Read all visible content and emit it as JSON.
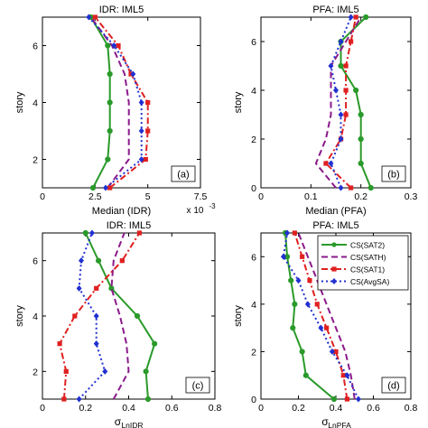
{
  "chart_data": [
    {
      "type": "line",
      "title": "IDR: IML5",
      "xlabel": "Median (IDR)",
      "ylabel": "story",
      "xlim": [
        0,
        7.5
      ],
      "ylim": [
        1,
        7
      ],
      "xticks": [
        "0",
        "2.5",
        "5",
        "7.5"
      ],
      "yticks": [
        "2",
        "4",
        "6"
      ],
      "x_multiplier": "x 10",
      "x_multiplier_exp": "-3",
      "panel_label": "(a)",
      "y": [
        1,
        2,
        3,
        4,
        5,
        6,
        7
      ],
      "series": [
        {
          "name": "CS(SAT2)",
          "color": "#2a9a2a",
          "dash": "solid",
          "marker": "circle",
          "x": [
            2.4,
            3.1,
            3.2,
            3.2,
            3.2,
            3.1,
            2.3
          ]
        },
        {
          "name": "CS(SATH)",
          "color": "#8b1a8b",
          "dash": "dashed",
          "marker": "none",
          "x": [
            3.1,
            4.1,
            4.1,
            4.1,
            3.9,
            3.3,
            2.3
          ]
        },
        {
          "name": "CS(SAT1)",
          "color": "#e02020",
          "dash": "dashdot",
          "marker": "square",
          "x": [
            3.2,
            4.9,
            5.0,
            5.0,
            4.2,
            3.6,
            2.5
          ]
        },
        {
          "name": "CS(AvgSA)",
          "color": "#2030d0",
          "dash": "dotted",
          "marker": "diamond",
          "x": [
            3.0,
            4.7,
            4.7,
            4.7,
            4.3,
            3.4,
            2.2
          ]
        }
      ]
    },
    {
      "type": "line",
      "title": "PFA: IML5",
      "xlabel": "Median (PFA)",
      "ylabel": "story",
      "xlim": [
        0,
        0.3
      ],
      "ylim": [
        0,
        7
      ],
      "xticks": [
        "0",
        "0.1",
        "0.2",
        "0.3"
      ],
      "yticks": [
        "0",
        "2",
        "4",
        "6"
      ],
      "panel_label": "(b)",
      "y": [
        0,
        1,
        2,
        3,
        4,
        5,
        6,
        7
      ],
      "series": [
        {
          "name": "CS(SAT2)",
          "color": "#2a9a2a",
          "dash": "solid",
          "marker": "circle",
          "x": [
            0.22,
            0.2,
            0.2,
            0.2,
            0.19,
            0.16,
            0.16,
            0.21
          ]
        },
        {
          "name": "CS(SATH)",
          "color": "#8b1a8b",
          "dash": "dashed",
          "marker": "none",
          "x": [
            0.15,
            0.11,
            0.13,
            0.14,
            0.14,
            0.14,
            0.17,
            0.2
          ]
        },
        {
          "name": "CS(SAT1)",
          "color": "#e02020",
          "dash": "dashdot",
          "marker": "square",
          "x": [
            0.18,
            0.13,
            0.16,
            0.17,
            0.17,
            0.17,
            0.18,
            0.19
          ]
        },
        {
          "name": "CS(AvgSA)",
          "color": "#2030d0",
          "dash": "dotted",
          "marker": "diamond",
          "x": [
            0.16,
            0.14,
            0.16,
            0.16,
            0.15,
            0.14,
            0.16,
            0.18
          ]
        }
      ]
    },
    {
      "type": "line",
      "title": "IDR: IML5",
      "xlabel": "σ",
      "xlabel_sub": "LnIDR",
      "ylabel": "story",
      "xlim": [
        0,
        0.8
      ],
      "ylim": [
        1,
        7
      ],
      "xticks": [
        "0",
        "0.2",
        "0.4",
        "0.6",
        "0.8"
      ],
      "yticks": [
        "2",
        "4",
        "6"
      ],
      "panel_label": "(c)",
      "y": [
        1,
        2,
        3,
        4,
        5,
        6,
        7
      ],
      "series": [
        {
          "name": "CS(SAT2)",
          "color": "#2a9a2a",
          "dash": "solid",
          "marker": "circle",
          "x": [
            0.49,
            0.48,
            0.52,
            0.44,
            0.32,
            0.26,
            0.2
          ]
        },
        {
          "name": "CS(SATH)",
          "color": "#8b1a8b",
          "dash": "dashed",
          "marker": "none",
          "x": [
            0.33,
            0.4,
            0.39,
            0.36,
            0.32,
            0.33,
            0.38
          ]
        },
        {
          "name": "CS(SAT1)",
          "color": "#e02020",
          "dash": "dashdot",
          "marker": "square",
          "x": [
            0.1,
            0.11,
            0.08,
            0.15,
            0.25,
            0.37,
            0.45
          ]
        },
        {
          "name": "CS(AvgSA)",
          "color": "#2030d0",
          "dash": "dotted",
          "marker": "diamond",
          "x": [
            0.17,
            0.29,
            0.25,
            0.25,
            0.17,
            0.18,
            0.23
          ]
        }
      ]
    },
    {
      "type": "line",
      "title": "PFA: IML5",
      "xlabel": "σ",
      "xlabel_sub": "LnPFA",
      "ylabel": "story",
      "xlim": [
        0,
        0.8
      ],
      "ylim": [
        0,
        7
      ],
      "xticks": [
        "0",
        "0.2",
        "0.4",
        "0.6",
        "0.8"
      ],
      "yticks": [
        "0",
        "2",
        "4",
        "6"
      ],
      "panel_label": "(d)",
      "legend": "top-right",
      "y": [
        0,
        1,
        2,
        3,
        4,
        5,
        6,
        7
      ],
      "series": [
        {
          "name": "CS(SAT2)",
          "color": "#2a9a2a",
          "dash": "solid",
          "marker": "circle",
          "x": [
            0.39,
            0.24,
            0.22,
            0.17,
            0.18,
            0.16,
            0.14,
            0.13
          ]
        },
        {
          "name": "CS(SATH)",
          "color": "#8b1a8b",
          "dash": "dashed",
          "marker": "none",
          "x": [
            0.5,
            0.48,
            0.45,
            0.4,
            0.35,
            0.3,
            0.25,
            0.2
          ]
        },
        {
          "name": "CS(SAT1)",
          "color": "#e02020",
          "dash": "dashdot",
          "marker": "square",
          "x": [
            0.46,
            0.44,
            0.4,
            0.35,
            0.3,
            0.26,
            0.22,
            0.18
          ]
        },
        {
          "name": "CS(AvgSA)",
          "color": "#2030d0",
          "dash": "dotted",
          "marker": "diamond",
          "x": [
            0.52,
            0.46,
            0.38,
            0.32,
            0.25,
            0.2,
            0.12,
            0.14
          ]
        }
      ]
    }
  ]
}
